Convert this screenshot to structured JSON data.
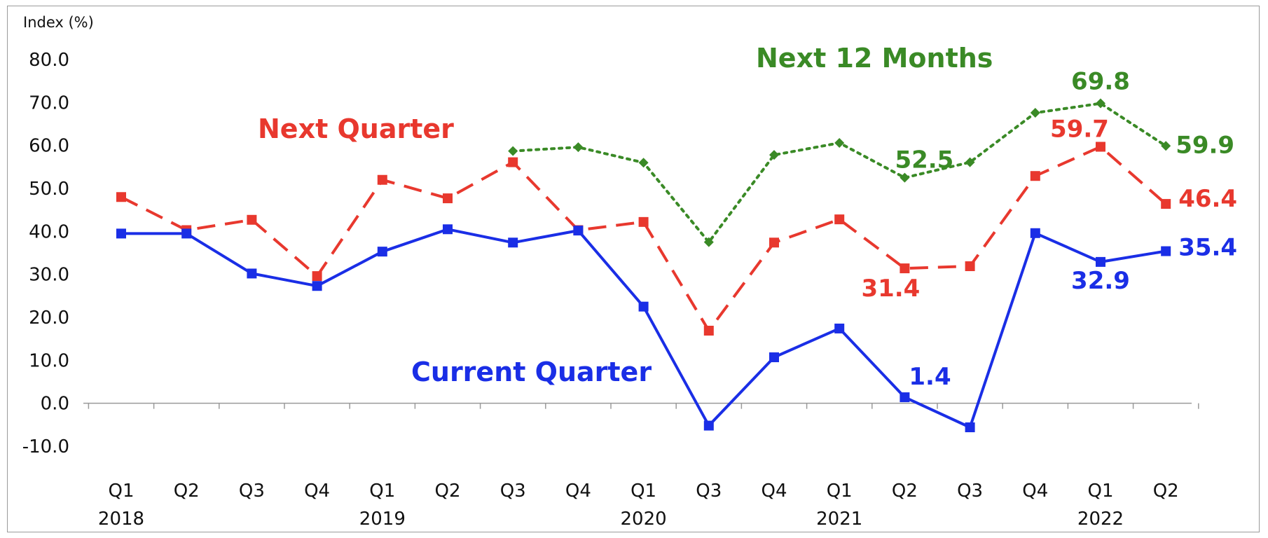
{
  "chart_data": {
    "type": "line",
    "ylabel": "Index (%)",
    "ylim": [
      -10,
      80
    ],
    "yticks": [
      "80.0",
      "70.0",
      "60.0",
      "50.0",
      "40.0",
      "30.0",
      "20.0",
      "10.0",
      "0.0",
      "-10.0"
    ],
    "ytick_values": [
      80,
      70,
      60,
      50,
      40,
      30,
      20,
      10,
      0,
      -10
    ],
    "categories": [
      "Q1",
      "Q2",
      "Q3",
      "Q4",
      "Q1",
      "Q2",
      "Q3",
      "Q4",
      "Q1",
      "Q3",
      "Q4",
      "Q1",
      "Q2",
      "Q3",
      "Q4",
      "Q1",
      "Q2"
    ],
    "years": [
      {
        "label": "2018",
        "index": 0
      },
      {
        "label": "2019",
        "index": 4
      },
      {
        "label": "2020",
        "index": 8
      },
      {
        "label": "2021",
        "index": 11
      },
      {
        "label": "2022",
        "index": 15
      }
    ],
    "grid": false,
    "series": [
      {
        "name": "Current Quarter",
        "color": "#1a2ee6",
        "style": "solid",
        "marker": "square",
        "values": [
          39.5,
          39.5,
          30.2,
          27.3,
          35.3,
          40.5,
          37.4,
          40.2,
          22.5,
          -5.2,
          10.7,
          17.4,
          1.4,
          -5.6,
          39.6,
          32.9,
          35.4
        ]
      },
      {
        "name": "Next Quarter",
        "color": "#e8382e",
        "style": "dashed",
        "marker": "square",
        "values": [
          48.0,
          40.3,
          42.7,
          29.6,
          52.0,
          47.7,
          56.1,
          40.3,
          42.2,
          16.9,
          37.4,
          42.8,
          31.4,
          31.9,
          52.9,
          59.7,
          46.4
        ]
      },
      {
        "name": "Next 12 Months",
        "color": "#3a8a26",
        "style": "dotted",
        "marker": "diamond",
        "values": [
          null,
          null,
          null,
          null,
          null,
          null,
          58.7,
          59.6,
          56.0,
          37.5,
          57.8,
          60.6,
          52.5,
          56.1,
          67.6,
          69.8,
          59.9
        ]
      }
    ],
    "data_labels": [
      {
        "series": 0,
        "index": 12,
        "text": "1.4"
      },
      {
        "series": 0,
        "index": 15,
        "text": "32.9"
      },
      {
        "series": 0,
        "index": 16,
        "text": "35.4"
      },
      {
        "series": 1,
        "index": 12,
        "text": "31.4"
      },
      {
        "series": 1,
        "index": 15,
        "text": "59.7"
      },
      {
        "series": 1,
        "index": 16,
        "text": "46.4"
      },
      {
        "series": 2,
        "index": 12,
        "text": "52.5"
      },
      {
        "series": 2,
        "index": 15,
        "text": "69.8"
      },
      {
        "series": 2,
        "index": 16,
        "text": "59.9"
      }
    ]
  }
}
